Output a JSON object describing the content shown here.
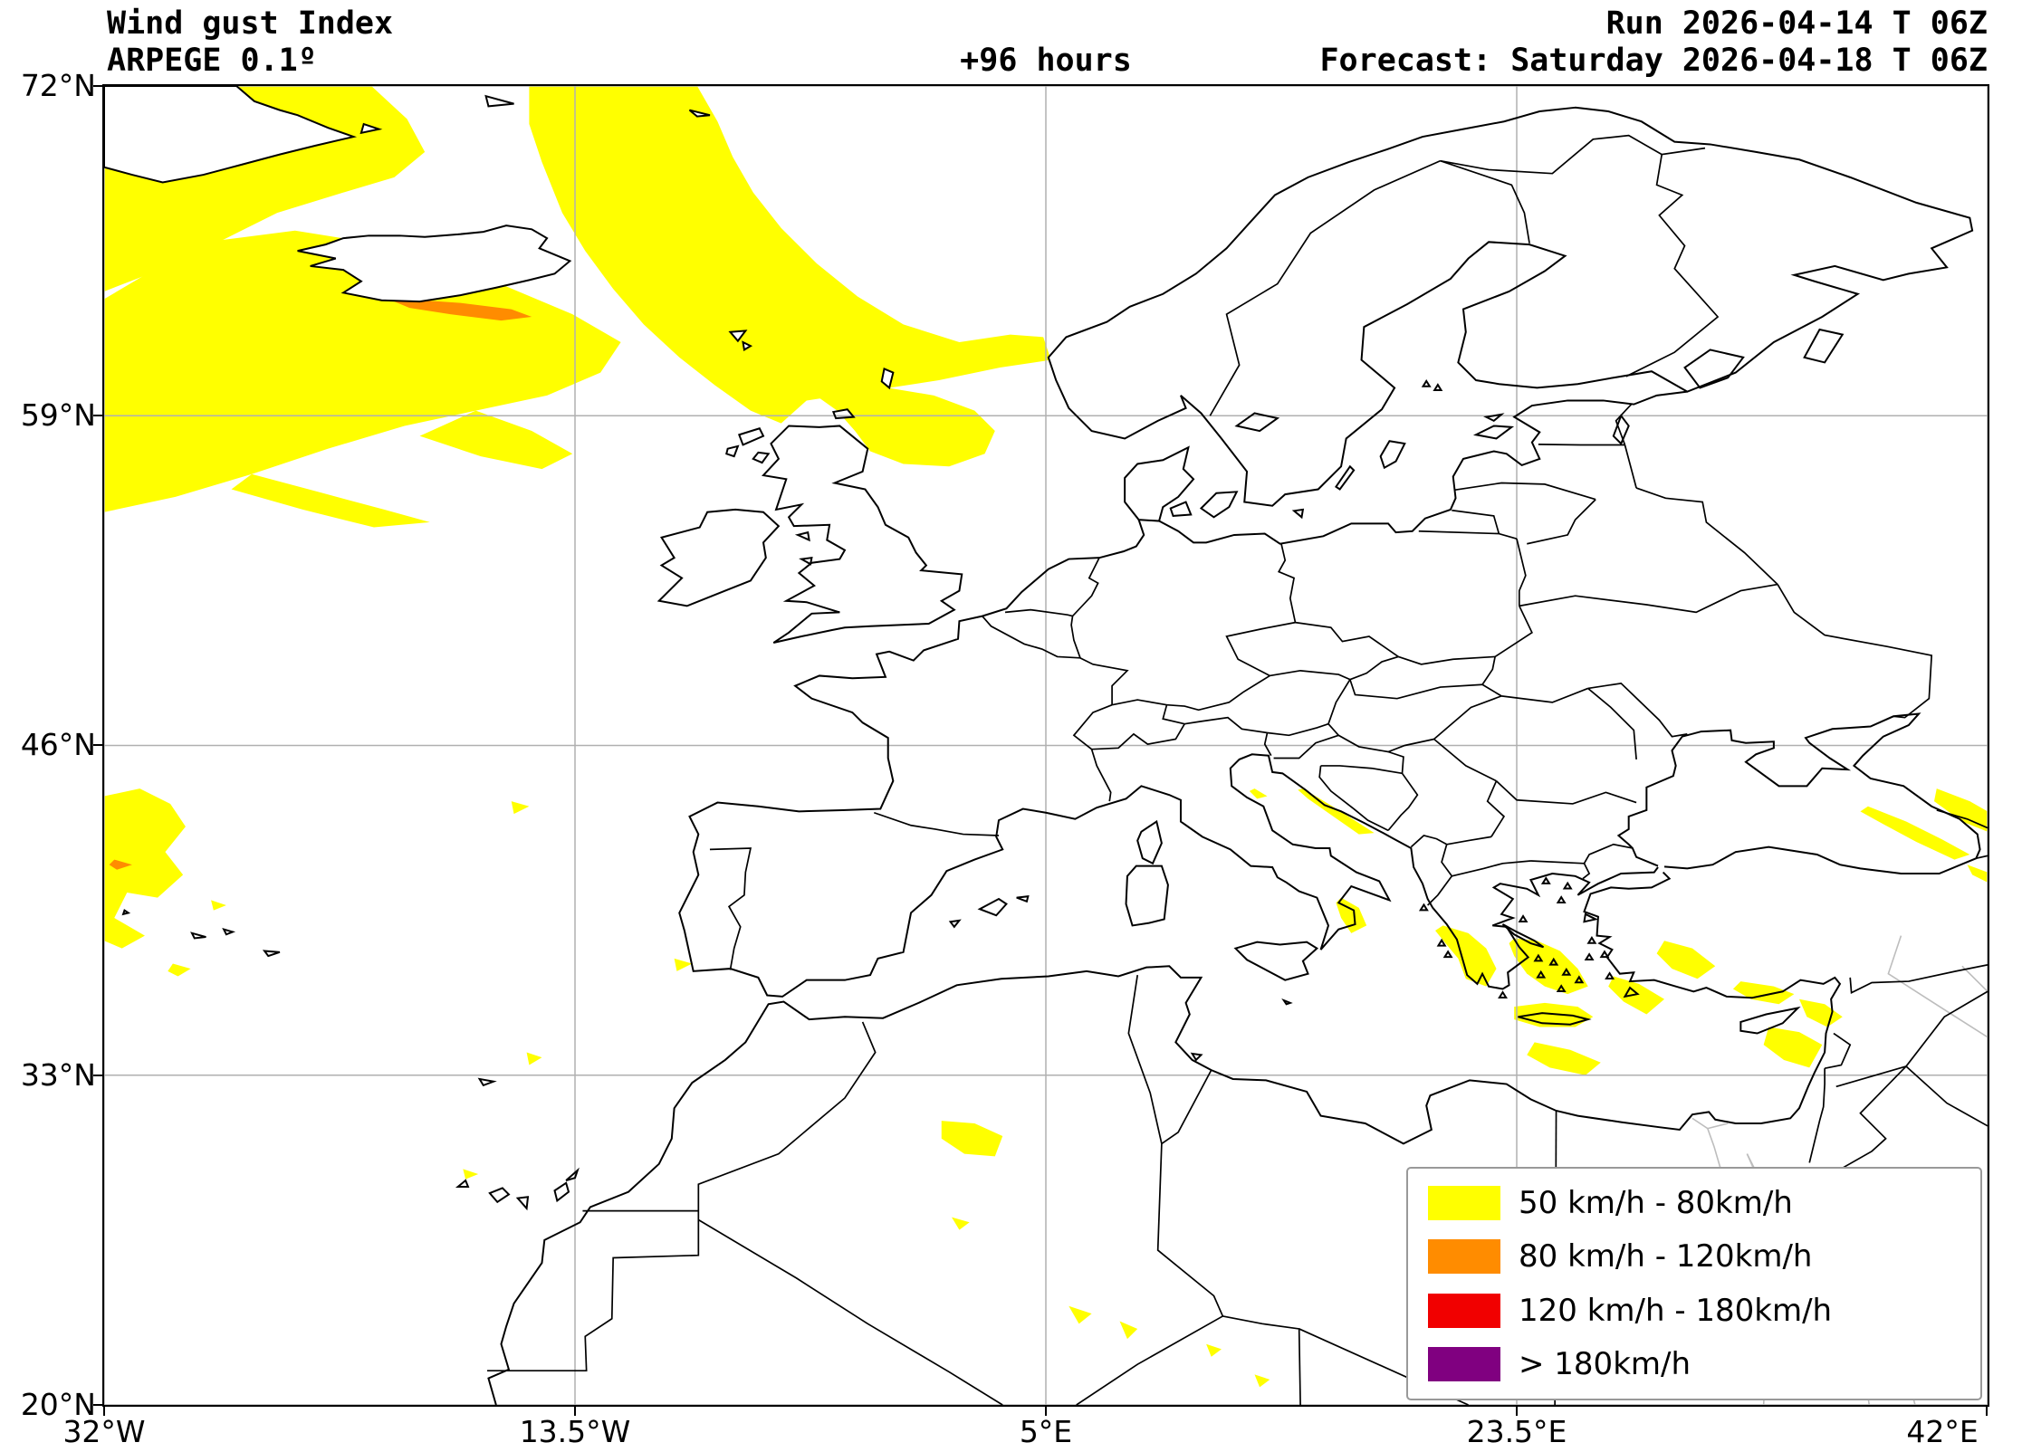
{
  "header": {
    "title_line1": "Wind gust Index",
    "title_line2": "ARPEGE 0.1º",
    "lead_time": "+96 hours",
    "run_line": "Run 2026-04-14 T 06Z",
    "forecast_line": "Forecast: Saturday 2026-04-18 T 06Z"
  },
  "axes": {
    "x_ticks": [
      "32°W",
      "13.5°W",
      "5°E",
      "23.5°E",
      "42°E"
    ],
    "y_ticks": [
      "72°N",
      "59°N",
      "46°N",
      "33°N",
      "20°N"
    ]
  },
  "map": {
    "lon_min": -32,
    "lon_max": 42,
    "lat_min": 20,
    "lat_max": 72,
    "grid_lons": [
      -32,
      -13.5,
      5,
      23.5,
      42
    ],
    "grid_lats": [
      72,
      59,
      46,
      33,
      20
    ],
    "grid_color": "#b0b0b0",
    "coast_color": "#000000",
    "river_color": "#bdbdbd"
  },
  "legend": {
    "items": [
      {
        "label": "50 km/h - 80km/h",
        "color": "#ffff00"
      },
      {
        "label": "80 km/h - 120km/h",
        "color": "#ff8c00"
      },
      {
        "label": "120 km/h - 180km/h",
        "color": "#f10000"
      },
      {
        "label": "> 180km/h",
        "color": "#800080"
      }
    ]
  }
}
